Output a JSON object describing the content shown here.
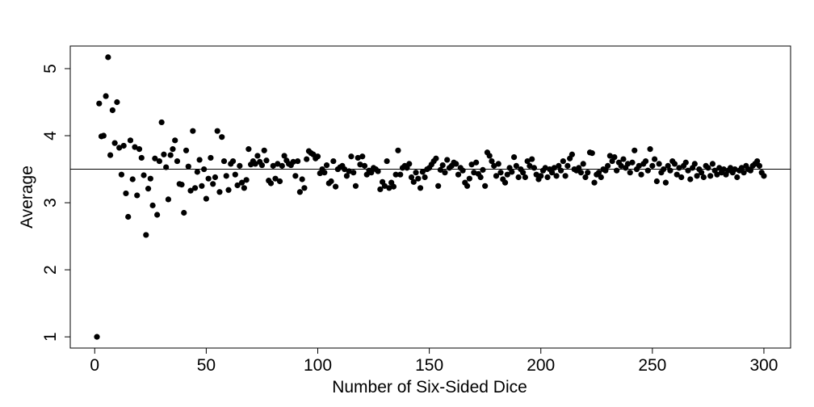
{
  "chart_data": {
    "type": "scatter",
    "xlabel": "Number of Six-Sided Dice",
    "ylabel": "Average",
    "color": "#000000",
    "hline": 3.5,
    "xlim": [
      -10.96,
      311.96
    ],
    "ylim": [
      0.833,
      5.337
    ],
    "xticks": [
      0,
      50,
      100,
      150,
      200,
      250,
      300
    ],
    "yticks": [
      1,
      2,
      3,
      4,
      5
    ],
    "x": [
      1,
      2,
      3,
      4,
      5,
      6,
      7,
      8,
      9,
      10,
      11,
      12,
      13,
      14,
      15,
      16,
      17,
      18,
      19,
      20,
      21,
      22,
      23,
      24,
      25,
      26,
      27,
      28,
      29,
      30,
      31,
      32,
      33,
      34,
      35,
      36,
      37,
      38,
      39,
      40,
      41,
      42,
      43,
      44,
      45,
      46,
      47,
      48,
      49,
      50,
      51,
      52,
      53,
      54,
      55,
      56,
      57,
      58,
      59,
      60,
      61,
      62,
      63,
      64,
      65,
      66,
      67,
      68,
      69,
      70,
      71,
      72,
      73,
      74,
      75,
      76,
      77,
      78,
      79,
      80,
      81,
      82,
      83,
      84,
      85,
      86,
      87,
      88,
      89,
      90,
      91,
      92,
      93,
      94,
      95,
      96,
      97,
      98,
      99,
      100,
      101,
      102,
      103,
      104,
      105,
      106,
      107,
      108,
      109,
      110,
      111,
      112,
      113,
      114,
      115,
      116,
      117,
      118,
      119,
      120,
      121,
      122,
      123,
      124,
      125,
      126,
      127,
      128,
      129,
      130,
      131,
      132,
      133,
      134,
      135,
      136,
      137,
      138,
      139,
      140,
      141,
      142,
      143,
      144,
      145,
      146,
      147,
      148,
      149,
      150,
      151,
      152,
      153,
      154,
      155,
      156,
      157,
      158,
      159,
      160,
      161,
      162,
      163,
      164,
      165,
      166,
      167,
      168,
      169,
      170,
      171,
      172,
      173,
      174,
      175,
      176,
      177,
      178,
      179,
      180,
      181,
      182,
      183,
      184,
      185,
      186,
      187,
      188,
      189,
      190,
      191,
      192,
      193,
      194,
      195,
      196,
      197,
      198,
      199,
      200,
      201,
      202,
      203,
      204,
      205,
      206,
      207,
      208,
      209,
      210,
      211,
      212,
      213,
      214,
      215,
      216,
      217,
      218,
      219,
      220,
      221,
      222,
      223,
      224,
      225,
      226,
      227,
      228,
      229,
      230,
      231,
      232,
      233,
      234,
      235,
      236,
      237,
      238,
      239,
      240,
      241,
      242,
      243,
      244,
      245,
      246,
      247,
      248,
      249,
      250,
      251,
      252,
      253,
      254,
      255,
      256,
      257,
      258,
      259,
      260,
      261,
      262,
      263,
      264,
      265,
      266,
      267,
      268,
      269,
      270,
      271,
      272,
      273,
      274,
      275,
      276,
      277,
      278,
      279,
      280,
      281,
      282,
      283,
      284,
      285,
      286,
      287,
      288,
      289,
      290,
      291,
      292,
      293,
      294,
      295,
      296,
      297,
      298,
      299,
      300
    ],
    "values": [
      1.0,
      4.48,
      3.99,
      4.0,
      4.59,
      5.17,
      3.71,
      4.38,
      3.89,
      4.5,
      3.82,
      3.42,
      3.85,
      3.14,
      2.79,
      3.93,
      3.35,
      3.83,
      3.11,
      3.8,
      3.67,
      3.41,
      2.52,
      3.21,
      3.36,
      2.96,
      3.66,
      2.82,
      3.62,
      4.2,
      3.72,
      3.53,
      3.05,
      3.71,
      3.8,
      3.93,
      3.62,
      3.28,
      3.27,
      2.85,
      3.78,
      3.54,
      3.18,
      4.07,
      3.22,
      3.46,
      3.64,
      3.25,
      3.5,
      3.06,
      3.36,
      3.67,
      3.28,
      3.38,
      4.07,
      3.16,
      3.98,
      3.62,
      3.4,
      3.19,
      3.58,
      3.62,
      3.42,
      3.26,
      3.55,
      3.3,
      3.22,
      3.34,
      3.8,
      3.57,
      3.62,
      3.58,
      3.7,
      3.61,
      3.56,
      3.78,
      3.63,
      3.33,
      3.29,
      3.55,
      3.36,
      3.58,
      3.32,
      3.55,
      3.7,
      3.63,
      3.58,
      3.56,
      3.61,
      3.4,
      3.62,
      3.16,
      3.35,
      3.22,
      3.65,
      3.77,
      3.74,
      3.72,
      3.66,
      3.69,
      3.44,
      3.5,
      3.45,
      3.56,
      3.29,
      3.32,
      3.62,
      3.24,
      3.5,
      3.53,
      3.55,
      3.5,
      3.4,
      3.47,
      3.69,
      3.45,
      3.25,
      3.67,
      3.57,
      3.69,
      3.55,
      3.42,
      3.48,
      3.45,
      3.52,
      3.5,
      3.47,
      3.2,
      3.31,
      3.25,
      3.62,
      3.22,
      3.3,
      3.24,
      3.42,
      3.78,
      3.42,
      3.52,
      3.55,
      3.52,
      3.58,
      3.38,
      3.31,
      3.45,
      3.36,
      3.22,
      3.46,
      3.38,
      3.5,
      3.52,
      3.57,
      3.62,
      3.66,
      3.25,
      3.49,
      3.56,
      3.45,
      3.64,
      3.52,
      3.55,
      3.6,
      3.58,
      3.42,
      3.52,
      3.48,
      3.3,
      3.25,
      3.36,
      3.57,
      3.45,
      3.6,
      3.43,
      3.38,
      3.49,
      3.25,
      3.75,
      3.7,
      3.62,
      3.55,
      3.4,
      3.58,
      3.45,
      3.35,
      3.3,
      3.42,
      3.52,
      3.46,
      3.68,
      3.55,
      3.38,
      3.5,
      3.45,
      3.38,
      3.62,
      3.55,
      3.65,
      3.52,
      3.42,
      3.35,
      3.4,
      3.48,
      3.52,
      3.38,
      3.5,
      3.45,
      3.52,
      3.4,
      3.55,
      3.48,
      3.62,
      3.4,
      3.55,
      3.66,
      3.72,
      3.5,
      3.48,
      3.52,
      3.45,
      3.58,
      3.38,
      3.45,
      3.75,
      3.74,
      3.3,
      3.42,
      3.45,
      3.38,
      3.5,
      3.48,
      3.55,
      3.7,
      3.62,
      3.68,
      3.48,
      3.6,
      3.55,
      3.65,
      3.52,
      3.58,
      3.45,
      3.6,
      3.78,
      3.5,
      3.55,
      3.42,
      3.58,
      3.62,
      3.48,
      3.8,
      3.55,
      3.65,
      3.32,
      3.58,
      3.45,
      3.5,
      3.3,
      3.55,
      3.48,
      3.62,
      3.58,
      3.42,
      3.52,
      3.38,
      3.55,
      3.6,
      3.48,
      3.35,
      3.52,
      3.58,
      3.4,
      3.5,
      3.45,
      3.38,
      3.55,
      3.52,
      3.4,
      3.58,
      3.48,
      3.42,
      3.52,
      3.45,
      3.5,
      3.42,
      3.48,
      3.52,
      3.45,
      3.5,
      3.38,
      3.48,
      3.52,
      3.45,
      3.55,
      3.5,
      3.48,
      3.55,
      3.58,
      3.62,
      3.55,
      3.45,
      3.4
    ]
  }
}
